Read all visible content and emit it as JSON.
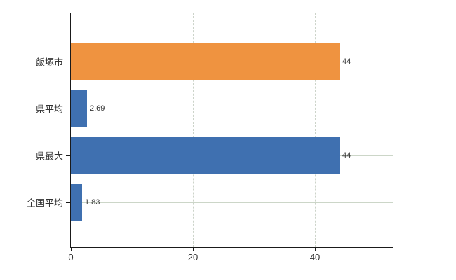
{
  "chart_data": {
    "type": "bar",
    "orientation": "horizontal",
    "title": "",
    "categories": [
      "飯塚市",
      "県平均",
      "県最大",
      "全国平均"
    ],
    "values": [
      44,
      2.69,
      44,
      1.83
    ],
    "data_labels": [
      "44",
      "2.69",
      "44",
      "1.83"
    ],
    "bar_colors": [
      "#ef9340",
      "#3f70b0",
      "#3f70b0",
      "#3f70b0"
    ],
    "x_axis": {
      "ticks": [
        0,
        20,
        40
      ],
      "tick_labels": [
        "0",
        "20",
        "40"
      ],
      "range": [
        0,
        52.8
      ]
    },
    "grid": true,
    "legend": false
  }
}
